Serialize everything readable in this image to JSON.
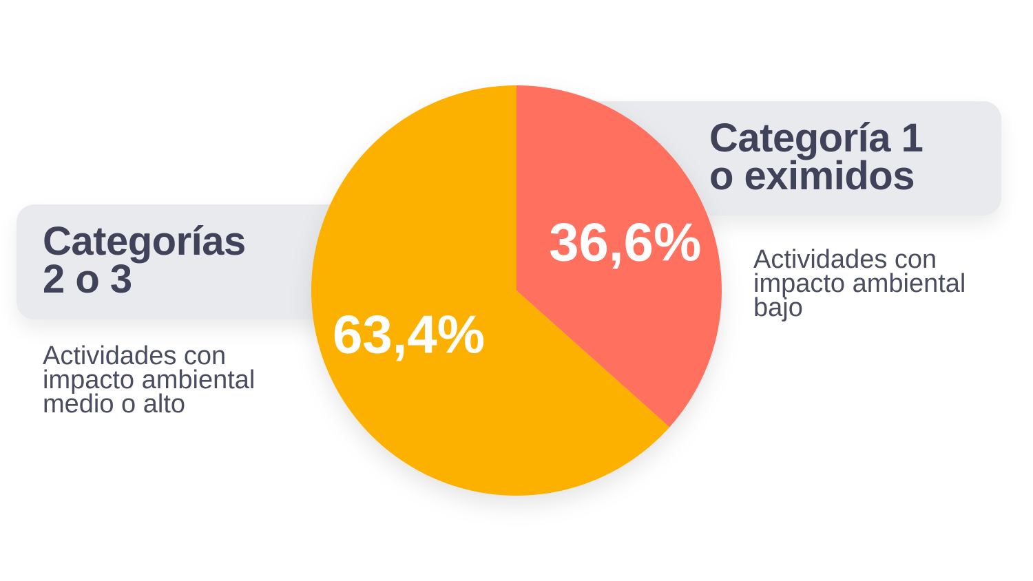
{
  "chart_data": {
    "type": "pie",
    "slices": [
      {
        "category": [
          "Categoría 1",
          "o eximidos"
        ],
        "value": 36.6,
        "label": "36,6%",
        "description": [
          "Actividades con",
          "impacto ambiental",
          "bajo"
        ],
        "color": "#ff6f5e"
      },
      {
        "category": [
          "Categorías",
          "2 o 3"
        ],
        "value": 63.4,
        "label": "63,4%",
        "description": [
          "Actividades con",
          "impacto ambiental",
          "medio o alto"
        ],
        "color": "#fcb006"
      }
    ]
  },
  "colors": {
    "label_box": "#e9eaed",
    "title_text": "#3f4258",
    "description_text": "#4a4d60",
    "slice_label_text": "#ffffff"
  }
}
